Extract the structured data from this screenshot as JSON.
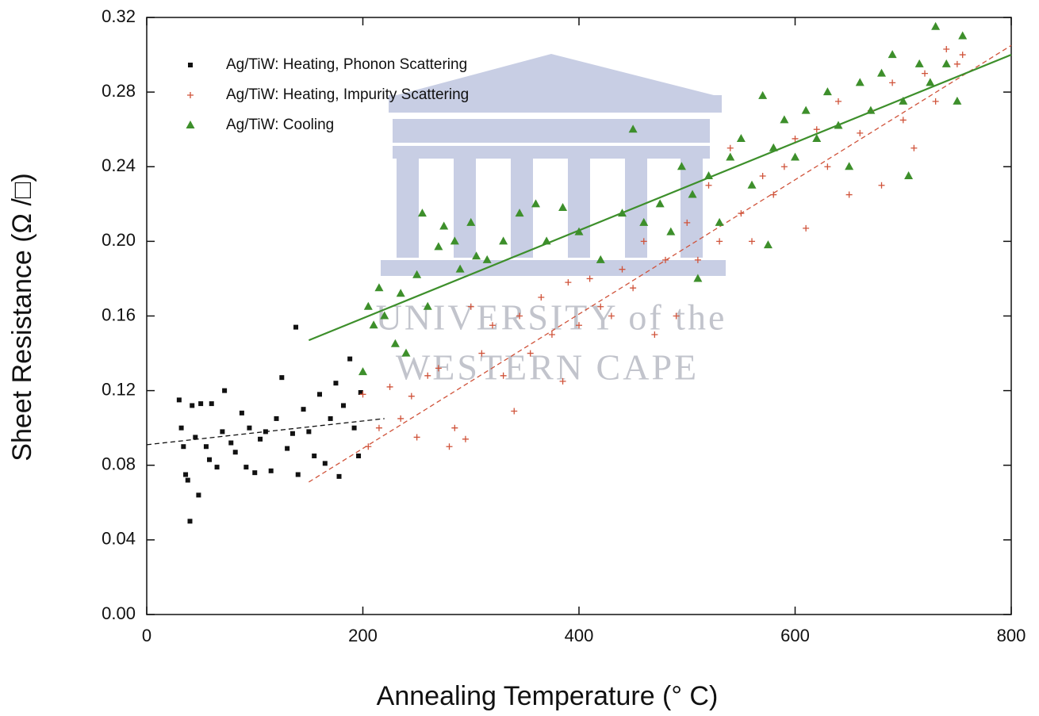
{
  "chart_data": {
    "type": "scatter",
    "xlabel": "Annealing Temperature (° C)",
    "ylabel": "Sheet Resistance (Ω /□)",
    "xlim": [
      0,
      800
    ],
    "xticks": [
      0,
      200,
      400,
      600,
      800
    ],
    "ylim": [
      0,
      0.32
    ],
    "yticks": [
      {
        "value": 0,
        "label": "0.00"
      },
      0.04,
      0.08,
      0.12,
      0.16,
      {
        "value": 0.2,
        "label": "0.20"
      },
      0.24,
      0.28,
      0.32
    ],
    "legend": "upper left",
    "watermark": [
      "UNIVERSITY of the",
      "WESTERN CAPE"
    ],
    "series": [
      {
        "name": "Ag/TiW: Heating, Phonon Scattering",
        "color": "#111111",
        "marker": "square",
        "x": [
          30,
          32,
          34,
          36,
          38,
          40,
          42,
          45,
          48,
          50,
          55,
          58,
          60,
          65,
          70,
          72,
          78,
          82,
          88,
          92,
          95,
          100,
          105,
          110,
          115,
          120,
          125,
          130,
          135,
          138,
          140,
          145,
          150,
          155,
          160,
          165,
          170,
          175,
          178,
          182,
          188,
          192,
          196,
          198
        ],
        "values": [
          0.115,
          0.1,
          0.09,
          0.075,
          0.072,
          0.05,
          0.112,
          0.095,
          0.064,
          0.113,
          0.09,
          0.083,
          0.113,
          0.079,
          0.098,
          0.12,
          0.092,
          0.087,
          0.108,
          0.079,
          0.1,
          0.076,
          0.094,
          0.098,
          0.077,
          0.105,
          0.127,
          0.089,
          0.097,
          0.154,
          0.075,
          0.11,
          0.098,
          0.085,
          0.118,
          0.081,
          0.105,
          0.124,
          0.074,
          0.112,
          0.137,
          0.1,
          0.085,
          0.119
        ]
      },
      {
        "name": "Ag/TiW: Heating, Impurity Scattering",
        "color": "#d0533a",
        "marker": "plus",
        "x": [
          200,
          205,
          215,
          225,
          235,
          245,
          250,
          260,
          270,
          280,
          285,
          295,
          300,
          310,
          320,
          330,
          340,
          345,
          355,
          365,
          375,
          385,
          390,
          400,
          410,
          420,
          430,
          440,
          450,
          460,
          470,
          480,
          490,
          500,
          510,
          520,
          530,
          540,
          550,
          560,
          570,
          580,
          590,
          600,
          610,
          620,
          630,
          640,
          650,
          660,
          670,
          680,
          690,
          700,
          710,
          720,
          730,
          740,
          750,
          755
        ],
        "values": [
          0.118,
          0.09,
          0.1,
          0.122,
          0.105,
          0.117,
          0.095,
          0.128,
          0.132,
          0.09,
          0.1,
          0.094,
          0.165,
          0.14,
          0.155,
          0.128,
          0.109,
          0.16,
          0.14,
          0.17,
          0.15,
          0.125,
          0.178,
          0.155,
          0.18,
          0.165,
          0.16,
          0.185,
          0.175,
          0.2,
          0.15,
          0.19,
          0.16,
          0.21,
          0.19,
          0.23,
          0.2,
          0.25,
          0.215,
          0.2,
          0.235,
          0.225,
          0.24,
          0.255,
          0.207,
          0.26,
          0.24,
          0.275,
          0.225,
          0.258,
          0.27,
          0.23,
          0.285,
          0.265,
          0.25,
          0.29,
          0.275,
          0.303,
          0.295,
          0.3
        ]
      },
      {
        "name": "Ag/TiW: Cooling",
        "color": "#3d8f2b",
        "marker": "triangle",
        "x": [
          200,
          205,
          210,
          215,
          220,
          230,
          235,
          240,
          250,
          255,
          260,
          270,
          275,
          285,
          290,
          300,
          305,
          315,
          330,
          345,
          360,
          370,
          385,
          400,
          420,
          440,
          450,
          460,
          475,
          485,
          495,
          505,
          510,
          520,
          530,
          540,
          550,
          560,
          570,
          575,
          580,
          590,
          600,
          610,
          620,
          630,
          640,
          650,
          660,
          670,
          680,
          690,
          700,
          705,
          715,
          725,
          730,
          740,
          750,
          755
        ],
        "values": [
          0.13,
          0.165,
          0.155,
          0.175,
          0.16,
          0.145,
          0.172,
          0.14,
          0.182,
          0.215,
          0.165,
          0.197,
          0.208,
          0.2,
          0.185,
          0.21,
          0.192,
          0.19,
          0.2,
          0.215,
          0.22,
          0.2,
          0.218,
          0.205,
          0.19,
          0.215,
          0.26,
          0.21,
          0.22,
          0.205,
          0.24,
          0.225,
          0.18,
          0.235,
          0.21,
          0.245,
          0.255,
          0.23,
          0.278,
          0.198,
          0.25,
          0.265,
          0.245,
          0.27,
          0.255,
          0.28,
          0.262,
          0.24,
          0.285,
          0.27,
          0.29,
          0.3,
          0.275,
          0.235,
          0.295,
          0.285,
          0.315,
          0.295,
          0.275,
          0.31
        ]
      }
    ],
    "fits": [
      {
        "color": "#111111",
        "dash": true,
        "x": [
          0,
          220
        ],
        "values": [
          0.091,
          0.105
        ]
      },
      {
        "color": "#d0533a",
        "dash": true,
        "x": [
          150,
          800
        ],
        "values": [
          0.071,
          0.305
        ]
      },
      {
        "color": "#3d8f2b",
        "dash": false,
        "x": [
          150,
          800
        ],
        "values": [
          0.147,
          0.3
        ]
      }
    ]
  }
}
